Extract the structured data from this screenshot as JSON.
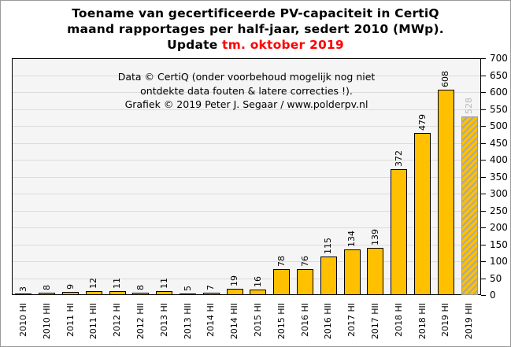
{
  "title": {
    "line1": "Toename van gecertificeerde PV-capaciteit in CertiQ",
    "line2": "maand rapportages per half-jaar, sedert 2010 (MWp).",
    "line3_prefix": "Update ",
    "line3_highlight": "tm. oktober 2019"
  },
  "annotation": {
    "line1": "Data © CertiQ (onder voorbehoud mogelijk  nog niet",
    "line2": "ontdekte data fouten & latere correcties !).",
    "line3": "Grafiek  © 2019  Peter J. Segaar / www.polderpv.nl"
  },
  "chart_data": {
    "type": "bar",
    "title": "Toename van gecertificeerde PV-capaciteit in CertiQ maand rapportages per half-jaar, sedert 2010 (MWp). Update tm. oktober 2019",
    "categories": [
      "2010 HI",
      "2010 HII",
      "2011 HI",
      "2011 HII",
      "2012 HI",
      "2012 HII",
      "2013 HI",
      "2013 HII",
      "2014 HI",
      "2014 HII",
      "2015 HI",
      "2015 HII",
      "2016 HI",
      "2016 HII",
      "2017 HI",
      "2017 HII",
      "2018 HI",
      "2018 HII",
      "2019 HI",
      "2019 HII"
    ],
    "values": [
      3,
      8,
      9,
      12,
      11,
      8,
      11,
      5,
      7,
      19,
      16,
      78,
      76,
      115,
      134,
      139,
      372,
      479,
      608,
      528
    ],
    "last_bar_provisional": true,
    "xlabel": "",
    "ylabel": "",
    "ylim": [
      0,
      700
    ],
    "ytick_step": 50,
    "grid": true,
    "axis_side": "right",
    "legend": "none",
    "colors": {
      "bar_fill": "#FFC000",
      "bar_border": "#000000",
      "hatch_alt": "#A8A8A8",
      "provisional_value_label": "#B8B8B8",
      "title_highlight": "#FF0000",
      "plot_background": "#F5F5F5",
      "gridline": "#DCDCDC"
    }
  }
}
